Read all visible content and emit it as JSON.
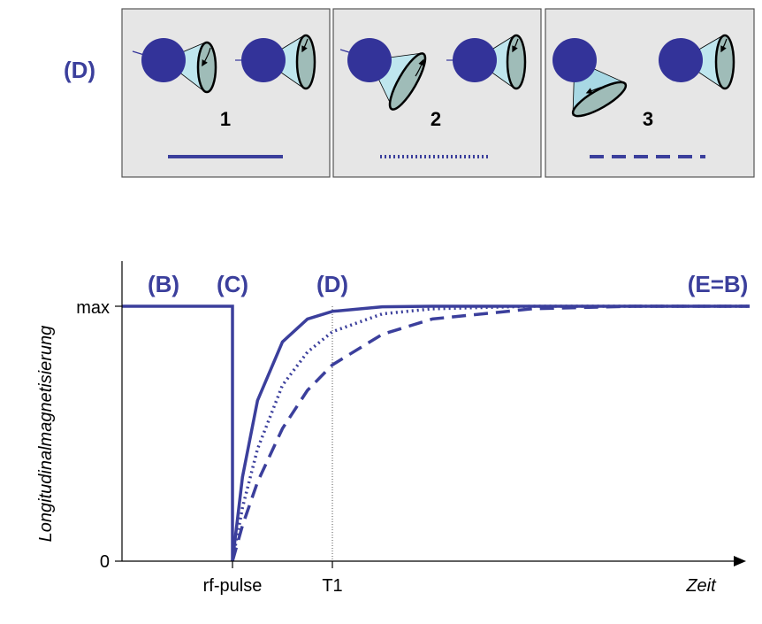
{
  "colors": {
    "accent": "#3b3f9c",
    "sphere": "#333399",
    "cone": "#bfe6ee",
    "cone_tilted": "#a8d8e4",
    "cone_base": "#9fbcb8",
    "panel_bg": "#e6e6e6",
    "panel_border": "#555555",
    "axis": "#000000",
    "dotted_guide": "#555555"
  },
  "top_panel": {
    "label": "(D)",
    "panels": [
      {
        "number": "1",
        "line_style": "solid",
        "cone_icon": "precession-cone-small-icon"
      },
      {
        "number": "2",
        "line_style": "dotted",
        "cone_icon": "precession-cone-medium-icon"
      },
      {
        "number": "3",
        "line_style": "dashed",
        "cone_icon": "precession-cone-large-icon"
      }
    ]
  },
  "chart_data": {
    "type": "line",
    "title": "",
    "xlabel": "Zeit",
    "ylabel": "Longitudinalmagnetisierung",
    "y_tick_labels": [
      "0",
      "max"
    ],
    "x_tick_labels": [
      "rf-pulse",
      "T1"
    ],
    "phase_labels": [
      "(B)",
      "(C)",
      "(D)",
      "(E=B)"
    ],
    "grid": false,
    "legend": "none",
    "note": "",
    "series": [
      {
        "style": "solid",
        "description": "fast recovery",
        "values_relative": {
          "x": [
            0,
            0.1,
            0.25,
            0.5,
            0.75,
            1.0,
            1.5,
            2.0
          ],
          "y": [
            0,
            0.33,
            0.63,
            0.86,
            0.95,
            0.98,
            0.998,
            1.0
          ]
        }
      },
      {
        "style": "dotted",
        "description": "medium recovery",
        "values_relative": {
          "x": [
            0,
            0.1,
            0.25,
            0.5,
            0.75,
            1.0,
            1.5,
            2.0,
            3.0
          ],
          "y": [
            0,
            0.21,
            0.44,
            0.69,
            0.82,
            0.9,
            0.97,
            0.99,
            1.0
          ]
        }
      },
      {
        "style": "dashed",
        "description": "slow recovery",
        "values_relative": {
          "x": [
            0,
            0.1,
            0.25,
            0.5,
            0.75,
            1.0,
            1.5,
            2.0,
            3.0,
            4.0
          ],
          "y": [
            0,
            0.14,
            0.31,
            0.52,
            0.67,
            0.77,
            0.89,
            0.95,
            0.99,
            1.0
          ]
        }
      }
    ]
  }
}
